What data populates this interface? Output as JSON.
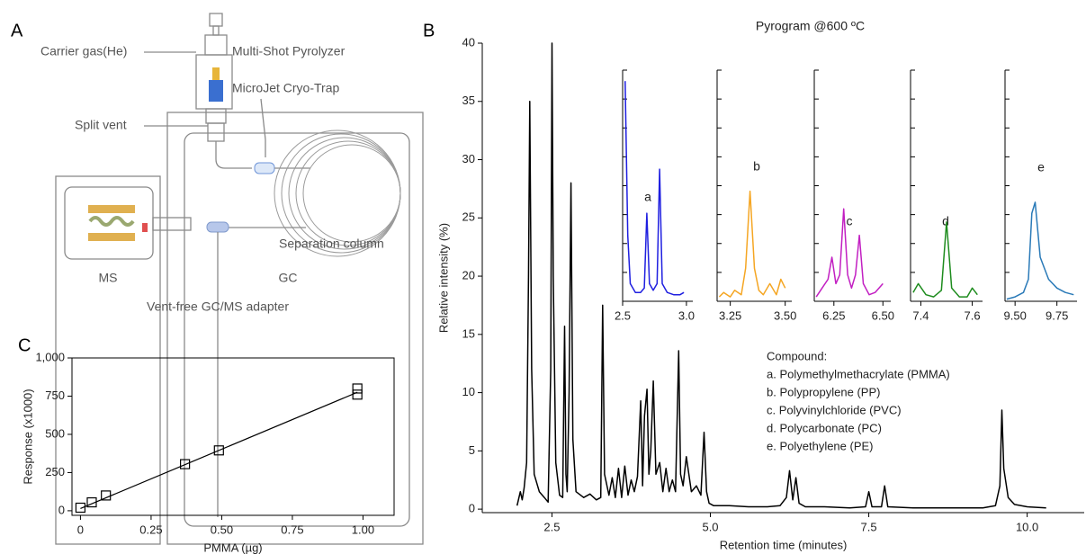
{
  "panel_labels": [
    "A",
    "B",
    "C"
  ],
  "diagram": {
    "labels": [
      "Carrier gas(He)",
      "Multi-Shot Pyrolyzer",
      "MicroJet Cryo-Trap",
      "Split vent",
      "Separation column",
      "MS",
      "GC",
      "Vent-free GC/MS adapter"
    ]
  },
  "chart_data": [
    {
      "type": "line",
      "title": "Pyrogram @600 ºC",
      "xlabel": "Retention time (minutes)",
      "ylabel": "Relative intensity (%)",
      "color": "#000000",
      "xlim": [
        1.4,
        10.9
      ],
      "xticks": [
        2.5,
        {
          "value": 5,
          "label": "5.0"
        },
        7.5,
        {
          "value": 10,
          "label": "10.0"
        }
      ],
      "ylim": [
        -0.3,
        40
      ],
      "yticks": [
        0,
        5,
        10,
        15,
        20,
        25,
        30,
        35,
        40
      ],
      "annotations": [
        "Compound:",
        "a. Polymethylmethacrylate (PMMA)",
        "b. Polypropylene (PP)",
        "c. Polyvinylchloride (PVC)",
        "d. Polycarbonate (PC)",
        "e. Polyethylene (PE)"
      ],
      "x": [
        1.95,
        2.0,
        2.03,
        2.06,
        2.1,
        2.13,
        2.15,
        2.18,
        2.22,
        2.3,
        2.38,
        2.44,
        2.48,
        2.5,
        2.52,
        2.56,
        2.62,
        2.67,
        2.7,
        2.72,
        2.74,
        2.77,
        2.8,
        2.83,
        2.88,
        3.0,
        3.1,
        3.2,
        3.27,
        3.3,
        3.33,
        3.4,
        3.45,
        3.5,
        3.55,
        3.6,
        3.65,
        3.7,
        3.75,
        3.8,
        3.85,
        3.9,
        3.93,
        3.96,
        4.0,
        4.03,
        4.06,
        4.1,
        4.14,
        4.2,
        4.25,
        4.3,
        4.35,
        4.4,
        4.45,
        4.5,
        4.53,
        4.57,
        4.62,
        4.7,
        4.78,
        4.85,
        4.9,
        4.94,
        4.98,
        5.05,
        5.3,
        5.6,
        5.9,
        6.1,
        6.2,
        6.25,
        6.3,
        6.35,
        6.4,
        6.5,
        6.8,
        7.2,
        7.45,
        7.5,
        7.55,
        7.7,
        7.75,
        7.8,
        8.2,
        8.8,
        9.3,
        9.5,
        9.57,
        9.6,
        9.63,
        9.7,
        9.8,
        10.0,
        10.3
      ],
      "values": [
        0.3,
        1.5,
        0.8,
        1.8,
        4,
        20,
        35,
        12,
        3,
        1.5,
        1,
        0.6,
        12,
        40,
        20,
        4,
        1.2,
        1,
        15.7,
        3,
        1.5,
        10,
        28,
        6,
        1.5,
        1,
        1.3,
        0.8,
        1,
        17.5,
        3,
        1.2,
        2.7,
        1,
        3.5,
        1,
        3.7,
        1.2,
        2.5,
        1.5,
        2.8,
        9.3,
        2,
        8,
        10.3,
        3,
        5,
        11,
        3,
        4,
        1.5,
        3.5,
        1.5,
        2.5,
        1.5,
        13.6,
        3,
        2,
        4.5,
        1.5,
        2,
        1.2,
        6.6,
        1.5,
        0.5,
        0.3,
        0.3,
        0.2,
        0.2,
        0.3,
        1,
        3.3,
        0.8,
        2.7,
        0.5,
        0.2,
        0.2,
        0.1,
        0.2,
        1.5,
        0.2,
        0.2,
        2,
        0.2,
        0.1,
        0.1,
        0.1,
        0.3,
        2,
        8.5,
        3.5,
        1,
        0.4,
        0.2,
        0.1
      ]
    },
    {
      "type": "line",
      "annotation": "a",
      "color": "#1f1fe0",
      "xlim": [
        2.5,
        3.05
      ],
      "xticks": [
        2.5,
        {
          "value": 3,
          "label": "3.0"
        }
      ],
      "ylim": [
        0,
        105
      ],
      "x": [
        2.52,
        2.54,
        2.56,
        2.6,
        2.64,
        2.67,
        2.69,
        2.71,
        2.74,
        2.77,
        2.79,
        2.81,
        2.85,
        2.9,
        2.95,
        2.98
      ],
      "values": [
        100,
        30,
        8,
        4,
        4,
        6,
        40,
        8,
        5,
        8,
        60,
        8,
        4,
        3,
        3,
        4
      ]
    },
    {
      "type": "line",
      "annotation": "b",
      "color": "#f5a623",
      "xlim": [
        3.19,
        3.53
      ],
      "xticks": [
        3.25,
        {
          "value": 3.5,
          "label": "3.50"
        }
      ],
      "ylim": [
        0,
        105
      ],
      "x": [
        3.2,
        3.22,
        3.25,
        3.27,
        3.3,
        3.32,
        3.34,
        3.36,
        3.38,
        3.4,
        3.43,
        3.46,
        3.48,
        3.5
      ],
      "values": [
        2,
        4,
        2,
        5,
        3,
        15,
        50,
        15,
        5,
        3,
        8,
        3,
        10,
        6
      ]
    },
    {
      "type": "line",
      "annotation": "c",
      "color": "#c21fc2",
      "xlim": [
        6.15,
        6.54
      ],
      "xticks": [
        6.25,
        {
          "value": 6.5,
          "label": "6.50"
        }
      ],
      "ylim": [
        0,
        105
      ],
      "x": [
        6.16,
        6.19,
        6.22,
        6.24,
        6.26,
        6.28,
        6.3,
        6.32,
        6.34,
        6.36,
        6.38,
        6.4,
        6.43,
        6.46,
        6.5
      ],
      "values": [
        2,
        6,
        10,
        20,
        8,
        12,
        42,
        12,
        6,
        12,
        30,
        8,
        3,
        4,
        8
      ]
    },
    {
      "type": "line",
      "annotation": "d",
      "color": "#1e8c1e",
      "xlim": [
        7.36,
        7.64
      ],
      "xticks": [
        7.4,
        7.6
      ],
      "ylim": [
        0,
        105
      ],
      "x": [
        7.37,
        7.39,
        7.42,
        7.45,
        7.48,
        7.5,
        7.52,
        7.55,
        7.58,
        7.6,
        7.62
      ],
      "values": [
        4,
        8,
        3,
        2,
        5,
        36,
        6,
        2,
        2,
        6,
        3
      ]
    },
    {
      "type": "line",
      "annotation": "e",
      "color": "#2a7ab8",
      "xlim": [
        9.44,
        9.87
      ],
      "xticks": [
        {
          "value": 9.5,
          "label": "9.50"
        },
        9.75
      ],
      "ylim": [
        0,
        105
      ],
      "x": [
        9.45,
        9.5,
        9.55,
        9.58,
        9.6,
        9.62,
        9.65,
        9.7,
        9.75,
        9.8,
        9.85
      ],
      "values": [
        1,
        2,
        4,
        10,
        40,
        45,
        20,
        10,
        6,
        4,
        3
      ]
    },
    {
      "type": "scatter",
      "xlabel": "PMMA (µg)",
      "ylabel": "Response (x1000)",
      "color": "#000000",
      "xlim": [
        -0.03,
        1.11
      ],
      "xticks": [
        0,
        0.25,
        {
          "value": 0.5,
          "label": "0.50"
        },
        0.75,
        {
          "value": 1,
          "label": "1.00"
        }
      ],
      "ylim": [
        -30,
        1000
      ],
      "yticks": [
        0,
        250,
        500,
        750,
        {
          "value": 1000,
          "label": "1,000"
        }
      ],
      "x": [
        0,
        0.04,
        0.09,
        0.37,
        0.49,
        0.98,
        0.98
      ],
      "values": [
        20,
        55,
        100,
        305,
        395,
        760,
        800
      ],
      "fit": {
        "x": [
          0,
          0.98
        ],
        "values": [
          15,
          775
        ]
      }
    }
  ]
}
